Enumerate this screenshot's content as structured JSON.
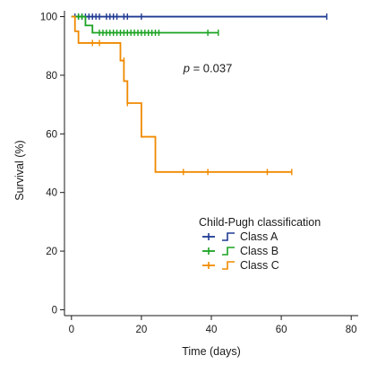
{
  "chart_data": {
    "type": "line",
    "chart_subtype": "kaplan-meier survival curve",
    "title": "",
    "xlabel": "Time (days)",
    "ylabel": "Survival (%)",
    "xlim": [
      -2,
      82
    ],
    "ylim": [
      -2,
      102
    ],
    "x_ticks": [
      0,
      20,
      40,
      60,
      80
    ],
    "y_ticks": [
      0,
      20,
      40,
      60,
      80,
      100
    ],
    "grid": false,
    "annotation": {
      "p_letter": "p",
      "p_rest": " = 0.037",
      "position": [
        32,
        81
      ]
    },
    "legend": {
      "title": "Child-Pugh classification",
      "placement": "lower-right"
    },
    "series": [
      {
        "name": "Class A",
        "color": "#1f3a93",
        "step_x": [
          0,
          73
        ],
        "step_y": [
          100,
          100
        ],
        "censored_x": [
          1,
          2,
          3,
          4,
          5,
          6,
          7,
          8,
          10,
          11,
          12,
          13,
          15,
          16,
          20,
          73
        ],
        "censored_y": [
          100,
          100,
          100,
          100,
          100,
          100,
          100,
          100,
          100,
          100,
          100,
          100,
          100,
          100,
          100,
          100
        ]
      },
      {
        "name": "Class B",
        "color": "#1aa321",
        "step_x": [
          0,
          4,
          6,
          42
        ],
        "step_y": [
          100,
          97,
          94.5,
          94.5
        ],
        "censored_x": [
          2,
          3,
          8,
          9,
          10,
          11,
          12,
          13,
          14,
          15,
          16,
          17,
          18,
          19,
          20,
          21,
          22,
          23,
          24,
          25,
          39,
          42
        ],
        "censored_y": [
          100,
          100,
          94.5,
          94.5,
          94.5,
          94.5,
          94.5,
          94.5,
          94.5,
          94.5,
          94.5,
          94.5,
          94.5,
          94.5,
          94.5,
          94.5,
          94.5,
          94.5,
          94.5,
          94.5,
          94.5,
          94.5
        ]
      },
      {
        "name": "Class C",
        "color": "#f08a00",
        "step_x": [
          0,
          1,
          2,
          14,
          15,
          16,
          20,
          24,
          63
        ],
        "step_y": [
          100,
          95,
          91,
          85,
          78,
          70.5,
          59,
          47,
          47
        ],
        "censored_x": [
          6,
          8,
          15,
          16,
          32,
          39,
          56,
          63
        ],
        "censored_y": [
          91,
          91,
          85,
          70.5,
          47,
          47,
          47,
          47
        ]
      }
    ]
  }
}
